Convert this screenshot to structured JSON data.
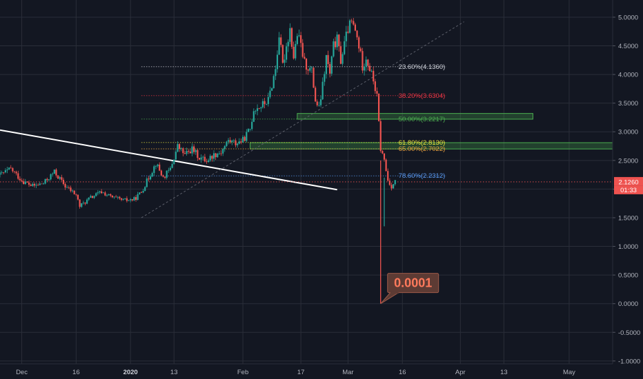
{
  "chart_data": {
    "type": "candlestick",
    "y_ticks": [
      "5.0000",
      "4.5000",
      "4.0000",
      "3.5000",
      "3.0000",
      "2.5000",
      "2.0000",
      "1.5000",
      "1.0000",
      "0.5000",
      "0.0000",
      "-0.5000",
      "-1.0000"
    ],
    "ylim": [
      -1.05,
      5.3
    ],
    "x_ticks": [
      {
        "label": "Dec",
        "day": 0
      },
      {
        "label": "16",
        "day": 15
      },
      {
        "label": "2020",
        "day": 30
      },
      {
        "label": "13",
        "day": 42
      },
      {
        "label": "Feb",
        "day": 61
      },
      {
        "label": "17",
        "day": 77
      },
      {
        "label": "Mar",
        "day": 90
      },
      {
        "label": "16",
        "day": 105
      },
      {
        "label": "Apr",
        "day": 121
      },
      {
        "label": "13",
        "day": 133
      },
      {
        "label": "May",
        "day": 151
      }
    ],
    "x_bold_labels": [
      "2020"
    ],
    "xlim": [
      -6,
      163
    ],
    "price_path": [
      [
        -6,
        2.25
      ],
      [
        -3,
        2.35
      ],
      [
        0,
        2.15
      ],
      [
        3,
        2.05
      ],
      [
        6,
        2.1
      ],
      [
        9,
        2.3
      ],
      [
        12,
        2.05
      ],
      [
        15,
        1.9
      ],
      [
        16,
        1.7
      ],
      [
        19,
        1.85
      ],
      [
        22,
        1.95
      ],
      [
        25,
        1.85
      ],
      [
        28,
        1.8
      ],
      [
        31,
        1.82
      ],
      [
        33,
        1.95
      ],
      [
        35,
        2.2
      ],
      [
        37,
        2.45
      ],
      [
        39,
        2.2
      ],
      [
        41,
        2.35
      ],
      [
        42,
        2.55
      ],
      [
        43,
        2.75
      ],
      [
        45,
        2.6
      ],
      [
        47,
        2.7
      ],
      [
        49,
        2.55
      ],
      [
        51,
        2.5
      ],
      [
        53,
        2.6
      ],
      [
        55,
        2.65
      ],
      [
        57,
        2.85
      ],
      [
        59,
        2.8
      ],
      [
        61,
        2.85
      ],
      [
        63,
        3.05
      ],
      [
        64,
        3.4
      ],
      [
        66,
        3.45
      ],
      [
        68,
        3.55
      ],
      [
        70,
        4.1
      ],
      [
        71,
        4.7
      ],
      [
        72,
        4.15
      ],
      [
        73,
        4.5
      ],
      [
        74,
        4.8
      ],
      [
        75,
        4.3
      ],
      [
        76,
        4.7
      ],
      [
        77,
        4.5
      ],
      [
        78,
        4.2
      ],
      [
        80,
        4.05
      ],
      [
        81,
        3.55
      ],
      [
        82,
        3.4
      ],
      [
        83,
        3.8
      ],
      [
        84,
        4.3
      ],
      [
        85,
        4.0
      ],
      [
        86,
        4.5
      ],
      [
        87,
        4.6
      ],
      [
        88,
        4.25
      ],
      [
        90,
        4.8
      ],
      [
        91,
        4.9
      ],
      [
        92,
        4.75
      ],
      [
        93,
        4.5
      ],
      [
        94,
        4.15
      ],
      [
        95,
        4.3
      ],
      [
        96,
        4.1
      ],
      [
        97,
        3.9
      ],
      [
        98,
        3.6
      ],
      [
        99,
        2.7
      ],
      [
        100,
        2.5
      ],
      [
        101,
        2.15
      ],
      [
        102,
        2.05
      ],
      [
        103,
        2.13
      ]
    ],
    "crash_wick": {
      "day": 99,
      "high": 2.5,
      "low": 0.0001
    },
    "spike_low": {
      "day": 100,
      "low": 1.35
    },
    "fib_levels": [
      {
        "label": "23.60%(4.1360)",
        "value": 4.136,
        "color": "#d1d4dc",
        "start_day": 33,
        "end_day": 117
      },
      {
        "label": "38.20%(3.6304)",
        "value": 3.6304,
        "color": "#f23645",
        "start_day": 33,
        "end_day": 117
      },
      {
        "label": "50.00%(3.2217)",
        "value": 3.2217,
        "color": "#4caf50",
        "start_day": 33,
        "end_day": 117
      },
      {
        "label": "61.80%(2.8130)",
        "value": 2.813,
        "color": "#e8e33d",
        "start_day": 33,
        "end_day": 117
      },
      {
        "label": "65.00%(2.7022)",
        "value": 2.7022,
        "color": "#e8a23d",
        "start_day": 33,
        "end_day": 117
      },
      {
        "label": "78.60%(2.2312)",
        "value": 2.2312,
        "color": "#5b9cf6",
        "start_day": 33,
        "end_day": 117
      }
    ],
    "zones": [
      {
        "day_start": 76,
        "day_end": 141,
        "top": 3.32,
        "bottom": 3.22,
        "color": "#4caf50"
      },
      {
        "day_start": 63,
        "day_end": 163,
        "top": 2.81,
        "bottom": 2.7,
        "color": "#4caf50"
      }
    ],
    "trendline": {
      "day_start": -6,
      "value_start": 3.03,
      "day_end": 87,
      "value_end": 1.99
    },
    "dotted_trend": {
      "day_start": 33,
      "value_start": 1.5,
      "day_end": 122,
      "value_end": 4.92
    },
    "current_price": {
      "value": 2.126,
      "label": "2.1260",
      "countdown": "01:33"
    },
    "callout": {
      "text": "0.0001",
      "day": 99,
      "value": 0.0001
    }
  }
}
